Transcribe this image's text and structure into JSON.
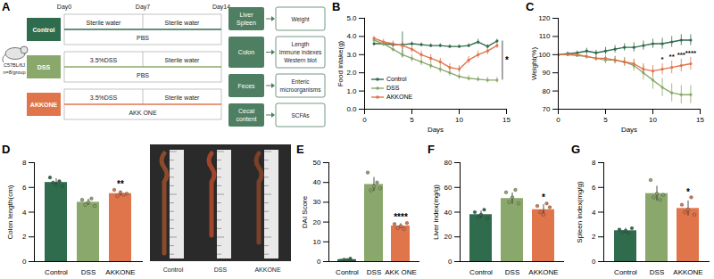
{
  "diagram": {
    "title": "A",
    "mouse": {
      "strain": "C57BL/6J",
      "n": "n=8/group"
    },
    "days": [
      "Day0",
      "Day7",
      "Day14"
    ],
    "groups": [
      {
        "name": "Control",
        "color": "#2f6b4d",
        "phases": [
          "Sterile water",
          "Sterile water"
        ],
        "treatment": "PBS"
      },
      {
        "name": "DSS",
        "color": "#8aa86b",
        "phases": [
          "3.5%DSS",
          "Sterile water"
        ],
        "treatment": "PBS"
      },
      {
        "name": "AKKONE",
        "color": "#e0744a",
        "phases": [
          "3.5%DSS",
          "Sterile water"
        ],
        "treatment": "AKK ONE"
      }
    ],
    "outcomes": [
      {
        "sample": "Liver Spleen",
        "measures": [
          "Weight"
        ]
      },
      {
        "sample": "Colon",
        "measures": [
          "Length",
          "Immune indexes",
          "Western blot"
        ]
      },
      {
        "sample": "Feces",
        "measures": [
          "Enteric microorganisms"
        ]
      },
      {
        "sample": "Cecal content",
        "measures": [
          "SCFAs"
        ]
      }
    ]
  },
  "photo": {
    "labels": [
      "Control",
      "DSS",
      "AKKONE"
    ]
  },
  "chart_data": [
    {
      "type": "line",
      "title": "B",
      "x_label": "Days",
      "y_label": "Food intake(g)",
      "x": [
        1,
        2,
        3,
        4,
        5,
        6,
        7,
        8,
        9,
        10,
        11,
        12,
        13,
        14
      ],
      "xlim": [
        0,
        15
      ],
      "xticks": [
        0,
        5,
        10,
        15
      ],
      "ylim": [
        0,
        5
      ],
      "yticks": [
        0,
        1,
        2,
        3,
        4,
        5
      ],
      "legend": "bottom-left",
      "marker": "circle",
      "series": [
        {
          "name": "Control",
          "color": "#2f6b4d",
          "values": [
            3.6,
            3.6,
            3.55,
            3.55,
            3.6,
            3.55,
            3.5,
            3.5,
            3.45,
            3.45,
            3.5,
            3.7,
            3.45,
            3.75
          ],
          "errors": [
            0.1,
            0.1,
            0.1,
            0.7,
            0.1,
            0.1,
            0.1,
            0.1,
            0.1,
            0.1,
            0.1,
            0.15,
            0.1,
            0.1
          ]
        },
        {
          "name": "DSS",
          "color": "#8aa86b",
          "values": [
            3.8,
            3.6,
            3.3,
            3.0,
            2.8,
            2.6,
            2.4,
            2.2,
            2.0,
            1.8,
            1.7,
            1.65,
            1.6,
            1.6
          ],
          "errors": [
            0.1,
            0.15,
            0.15,
            0.2,
            0.2,
            0.2,
            0.2,
            0.2,
            0.2,
            0.15,
            0.15,
            0.15,
            0.15,
            0.15
          ]
        },
        {
          "name": "AKKONE",
          "color": "#e0744a",
          "values": [
            3.9,
            3.7,
            3.6,
            3.5,
            3.3,
            3.0,
            2.8,
            2.6,
            2.3,
            2.2,
            2.7,
            3.0,
            3.2,
            3.5
          ],
          "errors": [
            0.1,
            0.15,
            0.15,
            0.2,
            0.2,
            0.2,
            0.2,
            0.2,
            0.2,
            0.2,
            0.2,
            0.2,
            0.2,
            0.15
          ]
        }
      ],
      "annotations": [
        {
          "x": 14,
          "text": "*",
          "between": [
            "Control",
            "DSS"
          ]
        }
      ]
    },
    {
      "type": "line",
      "title": "C",
      "x_label": "Days",
      "y_label": "Weight(%)",
      "x": [
        0,
        1,
        2,
        3,
        4,
        5,
        6,
        7,
        8,
        9,
        10,
        11,
        12,
        13,
        14
      ],
      "xlim": [
        0,
        15
      ],
      "xticks": [
        0,
        5,
        10,
        15
      ],
      "ylim": [
        70,
        120
      ],
      "yticks": [
        70,
        80,
        90,
        100,
        110,
        120
      ],
      "marker": "circle",
      "series": [
        {
          "name": "Control",
          "color": "#2f6b4d",
          "values": [
            100,
            100.5,
            101,
            102,
            101,
            102,
            103,
            104,
            104,
            105,
            106,
            106,
            107,
            108,
            108
          ],
          "errors": [
            0.5,
            1,
            1,
            1.5,
            1.5,
            2,
            2,
            2,
            2.5,
            2.5,
            2.5,
            3,
            3,
            3,
            3
          ]
        },
        {
          "name": "DSS",
          "color": "#8aa86b",
          "values": [
            100,
            100,
            99.5,
            99,
            98,
            97,
            97,
            96,
            94,
            90,
            86,
            82,
            79,
            78,
            78
          ],
          "errors": [
            0.5,
            1,
            1,
            1.5,
            1.5,
            2,
            2,
            2.5,
            3,
            4,
            5,
            5,
            5,
            5,
            5
          ]
        },
        {
          "name": "AKKONE",
          "color": "#e0744a",
          "values": [
            100,
            100,
            100,
            99,
            98,
            98,
            97,
            96,
            95,
            92,
            91,
            92,
            93,
            94,
            95
          ],
          "errors": [
            0.5,
            1,
            1,
            1,
            1.5,
            1.5,
            2,
            2,
            2.5,
            3,
            3,
            3,
            3.5,
            3.5,
            3.5
          ]
        }
      ],
      "annotations": [
        {
          "x": 11,
          "text": "*",
          "series": "AKKONE"
        },
        {
          "x": 12,
          "text": "**",
          "series": "AKKONE"
        },
        {
          "x": 13,
          "text": "***",
          "series": "AKKONE"
        },
        {
          "x": 14,
          "text": "****",
          "series": "AKKONE"
        }
      ]
    },
    {
      "type": "bar",
      "title": "D",
      "y_label": "Colon length(cm)",
      "categories": [
        "Control",
        "DSS",
        "AKKONE"
      ],
      "values": [
        6.4,
        4.8,
        5.5
      ],
      "errors": [
        0.3,
        0.25,
        0.2
      ],
      "points": [
        [
          6.8,
          6.4,
          6.2,
          6.5,
          6.1
        ],
        [
          5.0,
          4.6,
          4.8,
          5.1,
          4.5
        ],
        [
          5.8,
          5.3,
          5.6,
          5.4,
          5.5
        ]
      ],
      "significance": [
        null,
        null,
        "**"
      ],
      "colors": [
        "#2f6b4d",
        "#8aa86b",
        "#e0744a"
      ],
      "ylim": [
        0,
        8
      ],
      "yticks": [
        0,
        2,
        4,
        6,
        8
      ]
    },
    {
      "type": "bar",
      "title": "E",
      "y_label": "DAI Score",
      "categories": [
        "Control",
        "DSS",
        "AKK ONE"
      ],
      "values": [
        1,
        39,
        18
      ],
      "errors": [
        0.5,
        3.5,
        1.2
      ],
      "points": [
        [
          0.5,
          1,
          0.8,
          1.5,
          0.2
        ],
        [
          45,
          36,
          38,
          40,
          37
        ],
        [
          19,
          17,
          18,
          16.5,
          19.5
        ]
      ],
      "significance": [
        null,
        null,
        "****"
      ],
      "colors": [
        "#2f6b4d",
        "#8aa86b",
        "#e0744a"
      ],
      "ylim": [
        0,
        50
      ],
      "yticks": [
        0,
        10,
        20,
        30,
        40,
        50
      ]
    },
    {
      "type": "bar",
      "title": "F",
      "y_label": "Liver index(mg/g)",
      "categories": [
        "Control",
        "DSS",
        "AKKONE"
      ],
      "values": [
        38,
        51,
        42
      ],
      "errors": [
        3,
        4.5,
        4
      ],
      "points": [
        [
          40,
          36,
          38,
          42,
          35
        ],
        [
          56,
          48,
          52,
          58,
          47
        ],
        [
          45,
          40,
          38,
          47,
          44
        ]
      ],
      "significance": [
        null,
        null,
        "*"
      ],
      "colors": [
        "#2f6b4d",
        "#8aa86b",
        "#e0744a"
      ],
      "ylim": [
        0,
        80
      ],
      "yticks": [
        0,
        20,
        40,
        60,
        80
      ]
    },
    {
      "type": "bar",
      "title": "G",
      "y_label": "Spleen index(mg/g)",
      "categories": [
        "Control",
        "DSS",
        "AKKONE"
      ],
      "values": [
        2.5,
        5.5,
        4.3
      ],
      "errors": [
        0.2,
        0.6,
        0.6
      ],
      "points": [
        [
          2.6,
          2.4,
          2.5,
          2.3,
          2.7
        ],
        [
          6.6,
          5.2,
          5.5,
          5.0,
          5.4
        ],
        [
          4.6,
          4.0,
          4.2,
          5.2,
          3.8
        ]
      ],
      "significance": [
        null,
        null,
        "*"
      ],
      "colors": [
        "#2f6b4d",
        "#8aa86b",
        "#e0744a"
      ],
      "ylim": [
        0,
        8
      ],
      "yticks": [
        0,
        2,
        4,
        6,
        8
      ]
    }
  ]
}
